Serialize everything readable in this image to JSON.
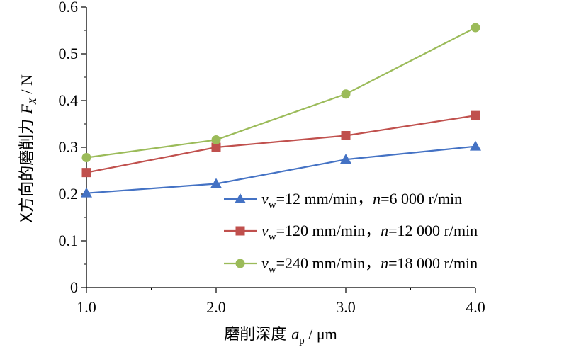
{
  "chart_data": {
    "type": "line",
    "x": [
      1.0,
      2.0,
      3.0,
      4.0
    ],
    "xticks": [
      "1.0",
      "2.0",
      "3.0",
      "4.0"
    ],
    "yticks": [
      "0",
      "0.1",
      "0.2",
      "0.3",
      "0.4",
      "0.5",
      "0.6"
    ],
    "xlim": [
      1.0,
      4.0
    ],
    "ylim": [
      0,
      0.6
    ],
    "xlabel": {
      "prefix": "磨削深度 ",
      "var": "a",
      "sub": "p",
      "unit": " / μm"
    },
    "ylabel": {
      "prefix": "X方向的磨削力  ",
      "var": "F",
      "sub": "X",
      "unit": " / N"
    },
    "legend_position": "inside-bottom-right",
    "grid": false,
    "series": [
      {
        "name_parts": {
          "v": "v",
          "vsub": "w",
          "mid": "=12 mm/min，",
          "n": "n",
          "tail": "=6 000 r/min"
        },
        "values": [
          0.202,
          0.222,
          0.274,
          0.302
        ],
        "color": "#4472C4",
        "marker": "triangle"
      },
      {
        "name_parts": {
          "v": "v",
          "vsub": "w",
          "mid": "=120 mm/min，",
          "n": "n",
          "tail": "=12 000 r/min"
        },
        "values": [
          0.246,
          0.3,
          0.325,
          0.368
        ],
        "color": "#C0504D",
        "marker": "square"
      },
      {
        "name_parts": {
          "v": "v",
          "vsub": "w",
          "mid": "=240 mm/min，",
          "n": "n",
          "tail": "=18 000 r/min"
        },
        "values": [
          0.278,
          0.316,
          0.414,
          0.556
        ],
        "color": "#9BBB59",
        "marker": "circle"
      }
    ]
  }
}
